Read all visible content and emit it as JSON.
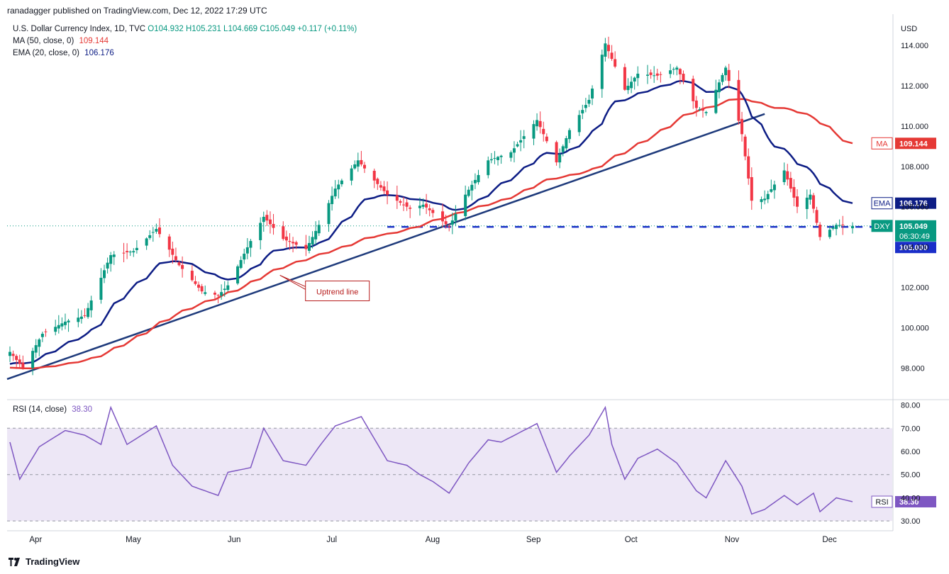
{
  "header": {
    "publisher_line": "ranadagger published on TradingView.com, Dec 12, 2022 17:29 UTC"
  },
  "legend": {
    "symbol": "U.S. Dollar Currency Index, 1D, TVC",
    "open": "O104.932",
    "high": "H105.231",
    "low": "L104.669",
    "close": "C105.049",
    "change": "+0.117 (+0.11%)",
    "ma_label": "MA (50, close, 0)",
    "ma_value": "109.144",
    "ema_label": "EMA (20, close, 0)",
    "ema_value": "106.176",
    "rsi_label": "RSI (14, close)",
    "rsi_value": "38.30"
  },
  "price_axis": {
    "currency": "USD",
    "ticks": [
      "114.000",
      "112.000",
      "110.000",
      "108.000",
      "106.000",
      "104.000",
      "102.000",
      "100.000",
      "98.000"
    ]
  },
  "rsi_axis": {
    "ticks": [
      "80.00",
      "70.00",
      "60.00",
      "50.00",
      "40.00",
      "30.00"
    ]
  },
  "time_axis": {
    "labels": [
      "Apr",
      "May",
      "Jun",
      "Jul",
      "Aug",
      "Sep",
      "Oct",
      "Nov",
      "Dec"
    ]
  },
  "badges": {
    "ma": {
      "name": "MA",
      "value": "109.144"
    },
    "ema": {
      "name": "EMA",
      "value": "106.176"
    },
    "dxy": {
      "name": "DXY",
      "value": "105.049",
      "timer": "06:30:49"
    },
    "level": {
      "value": "105.000"
    },
    "rsi": {
      "name": "RSI",
      "value": "38.30"
    }
  },
  "annotations": {
    "uptrend": "Uptrend line"
  },
  "colors": {
    "up": "#089981",
    "down": "#f23645",
    "ma": "#e53935",
    "ema": "#0d1d85",
    "trendline": "#1e3a7b",
    "support": "#1a2ec9",
    "rsi": "#7e57c2",
    "rsi_band": "#ede7f6"
  },
  "footer": {
    "brand": "TradingView"
  },
  "chart_data": {
    "type": "candlestick",
    "title": "U.S. Dollar Currency Index, 1D, TVC",
    "x_range": [
      "2022-03-28",
      "2022-12-12"
    ],
    "ylim": [
      96.5,
      115.2
    ],
    "rsi_ylim": [
      27,
      82
    ],
    "rsi_levels": [
      70,
      50,
      30
    ],
    "horizontal_level": 105.0,
    "trendline": {
      "from": {
        "x": "2022-03-28",
        "y": 97.45
      },
      "to": {
        "x": "2022-11-15",
        "y": 110.6
      }
    },
    "price_anchors": [
      {
        "x": "2022-03-28",
        "y": 98.8
      },
      {
        "x": "2022-04-01",
        "y": 98.0
      },
      {
        "x": "2022-04-07",
        "y": 99.7
      },
      {
        "x": "2022-04-14",
        "y": 100.3
      },
      {
        "x": "2022-04-20",
        "y": 100.6
      },
      {
        "x": "2022-04-28",
        "y": 103.6
      },
      {
        "x": "2022-05-05",
        "y": 103.8
      },
      {
        "x": "2022-05-12",
        "y": 104.9
      },
      {
        "x": "2022-05-19",
        "y": 103.1
      },
      {
        "x": "2022-05-26",
        "y": 101.8
      },
      {
        "x": "2022-05-31",
        "y": 101.6
      },
      {
        "x": "2022-06-03",
        "y": 102.1
      },
      {
        "x": "2022-06-10",
        "y": 104.3
      },
      {
        "x": "2022-06-14",
        "y": 105.5
      },
      {
        "x": "2022-06-20",
        "y": 104.4
      },
      {
        "x": "2022-06-27",
        "y": 103.9
      },
      {
        "x": "2022-07-01",
        "y": 105.1
      },
      {
        "x": "2022-07-06",
        "y": 106.9
      },
      {
        "x": "2022-07-13",
        "y": 108.3
      },
      {
        "x": "2022-07-18",
        "y": 107.3
      },
      {
        "x": "2022-07-22",
        "y": 106.6
      },
      {
        "x": "2022-07-29",
        "y": 105.9
      },
      {
        "x": "2022-08-02",
        "y": 106.1
      },
      {
        "x": "2022-08-10",
        "y": 105.0
      },
      {
        "x": "2022-08-15",
        "y": 106.6
      },
      {
        "x": "2022-08-22",
        "y": 108.3
      },
      {
        "x": "2022-08-29",
        "y": 108.7
      },
      {
        "x": "2022-09-06",
        "y": 110.3
      },
      {
        "x": "2022-09-12",
        "y": 108.2
      },
      {
        "x": "2022-09-16",
        "y": 109.8
      },
      {
        "x": "2022-09-22",
        "y": 111.3
      },
      {
        "x": "2022-09-27",
        "y": 114.1
      },
      {
        "x": "2022-10-03",
        "y": 111.8
      },
      {
        "x": "2022-10-07",
        "y": 112.6
      },
      {
        "x": "2022-10-13",
        "y": 112.5
      },
      {
        "x": "2022-10-19",
        "y": 112.9
      },
      {
        "x": "2022-10-25",
        "y": 110.9
      },
      {
        "x": "2022-10-28",
        "y": 110.7
      },
      {
        "x": "2022-11-03",
        "y": 112.9
      },
      {
        "x": "2022-11-08",
        "y": 109.6
      },
      {
        "x": "2022-11-11",
        "y": 106.3
      },
      {
        "x": "2022-11-15",
        "y": 106.4
      },
      {
        "x": "2022-11-21",
        "y": 107.8
      },
      {
        "x": "2022-11-25",
        "y": 106.0
      },
      {
        "x": "2022-11-29",
        "y": 106.6
      },
      {
        "x": "2022-12-02",
        "y": 104.5
      },
      {
        "x": "2022-12-07",
        "y": 105.1
      },
      {
        "x": "2022-12-12",
        "y": 105.05
      }
    ],
    "last_candle": {
      "open": 104.932,
      "high": 105.231,
      "low": 104.669,
      "close": 105.049
    },
    "ma50_end": 109.144,
    "ema20_end": 106.176,
    "rsi_anchors": [
      {
        "x": "2022-03-28",
        "y": 64
      },
      {
        "x": "2022-03-31",
        "y": 48
      },
      {
        "x": "2022-04-06",
        "y": 62
      },
      {
        "x": "2022-04-14",
        "y": 69
      },
      {
        "x": "2022-04-20",
        "y": 67
      },
      {
        "x": "2022-04-25",
        "y": 63
      },
      {
        "x": "2022-04-28",
        "y": 79
      },
      {
        "x": "2022-05-03",
        "y": 63
      },
      {
        "x": "2022-05-12",
        "y": 71
      },
      {
        "x": "2022-05-17",
        "y": 54
      },
      {
        "x": "2022-05-23",
        "y": 45
      },
      {
        "x": "2022-05-31",
        "y": 41
      },
      {
        "x": "2022-06-03",
        "y": 51
      },
      {
        "x": "2022-06-10",
        "y": 53
      },
      {
        "x": "2022-06-14",
        "y": 70
      },
      {
        "x": "2022-06-20",
        "y": 56
      },
      {
        "x": "2022-06-27",
        "y": 54
      },
      {
        "x": "2022-07-01",
        "y": 62
      },
      {
        "x": "2022-07-06",
        "y": 71
      },
      {
        "x": "2022-07-14",
        "y": 75
      },
      {
        "x": "2022-07-22",
        "y": 56
      },
      {
        "x": "2022-07-28",
        "y": 54
      },
      {
        "x": "2022-08-01",
        "y": 50
      },
      {
        "x": "2022-08-05",
        "y": 47
      },
      {
        "x": "2022-08-10",
        "y": 42
      },
      {
        "x": "2022-08-16",
        "y": 55
      },
      {
        "x": "2022-08-22",
        "y": 65
      },
      {
        "x": "2022-08-26",
        "y": 64
      },
      {
        "x": "2022-09-06",
        "y": 72
      },
      {
        "x": "2022-09-12",
        "y": 51
      },
      {
        "x": "2022-09-16",
        "y": 58
      },
      {
        "x": "2022-09-22",
        "y": 67
      },
      {
        "x": "2022-09-27",
        "y": 79
      },
      {
        "x": "2022-09-29",
        "y": 63
      },
      {
        "x": "2022-10-03",
        "y": 48
      },
      {
        "x": "2022-10-07",
        "y": 57
      },
      {
        "x": "2022-10-13",
        "y": 61
      },
      {
        "x": "2022-10-19",
        "y": 55
      },
      {
        "x": "2022-10-25",
        "y": 43
      },
      {
        "x": "2022-10-28",
        "y": 40
      },
      {
        "x": "2022-11-03",
        "y": 56
      },
      {
        "x": "2022-11-08",
        "y": 45
      },
      {
        "x": "2022-11-11",
        "y": 33
      },
      {
        "x": "2022-11-15",
        "y": 35
      },
      {
        "x": "2022-11-21",
        "y": 41
      },
      {
        "x": "2022-11-25",
        "y": 37
      },
      {
        "x": "2022-11-30",
        "y": 42
      },
      {
        "x": "2022-12-02",
        "y": 34
      },
      {
        "x": "2022-12-07",
        "y": 40
      },
      {
        "x": "2022-12-12",
        "y": 38.3
      }
    ]
  }
}
